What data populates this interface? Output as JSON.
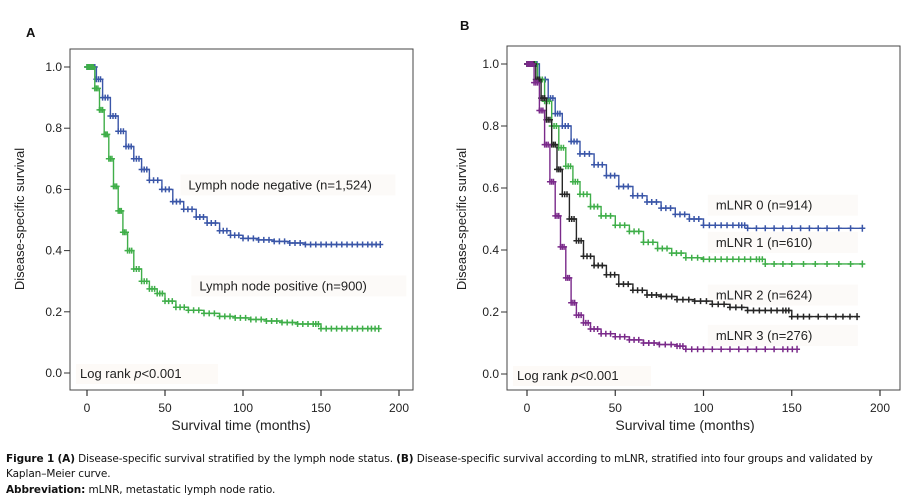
{
  "chart_data": [
    {
      "type": "line",
      "panel": "A",
      "title": "",
      "xlabel": "Survival time (months)",
      "ylabel": "Disease-specific survival",
      "xlim": [
        -5,
        210
      ],
      "ylim": [
        -0.05,
        1.05
      ],
      "xticks": [
        0,
        50,
        100,
        150,
        200
      ],
      "xtick_labels": [
        "0",
        "50",
        "100",
        "150",
        "200"
      ],
      "yticks": [
        0.0,
        0.2,
        0.4,
        0.6,
        0.8,
        1.0
      ],
      "ytick_labels": [
        "0.0",
        "0.2",
        "0.4",
        "0.6",
        "0.8",
        "1.0"
      ],
      "grid": false,
      "annotation": {
        "prefix": "Log rank ",
        "italic": "p",
        "suffix": "<0.001"
      },
      "series": [
        {
          "name": "Lymph node negative (n=1,524)",
          "color": "#3a56a8",
          "label_at": [
            65,
            0.6
          ],
          "x": [
            0,
            3,
            6,
            10,
            15,
            20,
            25,
            30,
            35,
            40,
            48,
            55,
            62,
            70,
            77,
            85,
            92,
            100,
            110,
            120,
            130,
            140,
            150,
            160,
            170,
            180,
            188
          ],
          "y": [
            1.0,
            1.0,
            0.96,
            0.9,
            0.84,
            0.79,
            0.74,
            0.7,
            0.665,
            0.63,
            0.6,
            0.56,
            0.535,
            0.51,
            0.49,
            0.465,
            0.45,
            0.44,
            0.435,
            0.43,
            0.425,
            0.42,
            0.42,
            0.42,
            0.42,
            0.42,
            0.42
          ]
        },
        {
          "name": "Lymph node positive (n=900)",
          "color": "#3fae49",
          "label_at": [
            72,
            0.27
          ],
          "x": [
            0,
            2,
            5,
            8,
            11,
            14,
            17,
            20,
            23,
            26,
            30,
            35,
            40,
            45,
            50,
            57,
            65,
            75,
            85,
            95,
            105,
            115,
            125,
            135,
            145,
            150,
            160,
            170,
            180,
            187
          ],
          "y": [
            1.0,
            1.0,
            0.93,
            0.86,
            0.78,
            0.7,
            0.61,
            0.53,
            0.46,
            0.4,
            0.34,
            0.3,
            0.275,
            0.26,
            0.235,
            0.215,
            0.205,
            0.195,
            0.185,
            0.18,
            0.175,
            0.17,
            0.165,
            0.16,
            0.16,
            0.145,
            0.145,
            0.145,
            0.145,
            0.145
          ]
        }
      ]
    },
    {
      "type": "line",
      "panel": "B",
      "title": "",
      "xlabel": "Survival time (months)",
      "ylabel": "Disease-specific survival",
      "xlim": [
        -5,
        210
      ],
      "ylim": [
        -0.05,
        1.05
      ],
      "xticks": [
        0,
        50,
        100,
        150,
        200
      ],
      "xtick_labels": [
        "0",
        "50",
        "100",
        "150",
        "200"
      ],
      "yticks": [
        0.0,
        0.2,
        0.4,
        0.6,
        0.8,
        1.0
      ],
      "ytick_labels": [
        "0.0",
        "0.2",
        "0.4",
        "0.6",
        "0.8",
        "1.0"
      ],
      "grid": false,
      "annotation": {
        "prefix": "Log rank ",
        "italic": "p",
        "suffix": "<0.001"
      },
      "series": [
        {
          "name": "mLNR 0 (n=914)",
          "color": "#3a56a8",
          "label_at": [
            107,
            0.53
          ],
          "x": [
            0,
            3,
            7,
            12,
            16,
            20,
            25,
            30,
            38,
            45,
            52,
            60,
            68,
            76,
            84,
            92,
            100,
            110,
            120,
            125,
            140,
            155,
            170,
            190
          ],
          "y": [
            1.0,
            1.0,
            0.95,
            0.89,
            0.84,
            0.8,
            0.75,
            0.71,
            0.675,
            0.64,
            0.605,
            0.575,
            0.555,
            0.535,
            0.515,
            0.5,
            0.48,
            0.48,
            0.48,
            0.47,
            0.47,
            0.47,
            0.47,
            0.47
          ]
        },
        {
          "name": "mLNR 1 (n=610)",
          "color": "#3fae49",
          "label_at": [
            107,
            0.41
          ],
          "x": [
            0,
            3,
            6,
            10,
            14,
            18,
            22,
            26,
            30,
            36,
            42,
            50,
            58,
            66,
            74,
            82,
            90,
            100,
            110,
            120,
            130,
            135,
            150,
            170,
            190
          ],
          "y": [
            1.0,
            1.0,
            0.95,
            0.88,
            0.8,
            0.73,
            0.67,
            0.62,
            0.58,
            0.54,
            0.51,
            0.48,
            0.46,
            0.425,
            0.405,
            0.39,
            0.375,
            0.37,
            0.37,
            0.37,
            0.37,
            0.355,
            0.355,
            0.355,
            0.355
          ]
        },
        {
          "name": "mLNR 2 (n=624)",
          "color": "#262626",
          "label_at": [
            107,
            0.24
          ],
          "x": [
            0,
            2,
            5,
            8,
            11,
            14,
            17,
            20,
            24,
            28,
            32,
            38,
            45,
            52,
            60,
            68,
            76,
            85,
            95,
            105,
            115,
            125,
            135,
            145,
            150,
            160,
            175,
            187
          ],
          "y": [
            1.0,
            1.0,
            0.95,
            0.89,
            0.82,
            0.74,
            0.66,
            0.58,
            0.5,
            0.43,
            0.38,
            0.35,
            0.32,
            0.29,
            0.27,
            0.255,
            0.25,
            0.24,
            0.235,
            0.225,
            0.215,
            0.205,
            0.205,
            0.205,
            0.185,
            0.185,
            0.185,
            0.185
          ]
        },
        {
          "name": "mLNR 3 (n=276)",
          "color": "#7a2a8a",
          "label_at": [
            107,
            0.11
          ],
          "x": [
            0,
            2,
            4,
            7,
            10,
            13,
            16,
            19,
            22,
            25,
            28,
            32,
            36,
            42,
            50,
            58,
            66,
            75,
            85,
            90,
            100,
            115,
            130,
            145,
            153
          ],
          "y": [
            1.0,
            1.0,
            0.94,
            0.85,
            0.74,
            0.62,
            0.51,
            0.41,
            0.31,
            0.23,
            0.19,
            0.165,
            0.145,
            0.13,
            0.12,
            0.11,
            0.1,
            0.095,
            0.09,
            0.08,
            0.08,
            0.08,
            0.08,
            0.08,
            0.08
          ]
        }
      ]
    }
  ],
  "panels": [
    {
      "letter": "A"
    },
    {
      "letter": "B"
    }
  ],
  "caption": {
    "figure_label": "Figure 1",
    "part_a_label": "(A)",
    "part_a_text": " Disease-specific survival stratified by the lymph node status. ",
    "part_b_label": "(B)",
    "part_b_text": " Disease-specific survival according to mLNR, stratified into four groups and validated by Kaplan–Meier curve.",
    "abbreviation_label": "Abbreviation:",
    "abbreviation_text": " mLNR, metastatic lymph node ratio."
  }
}
